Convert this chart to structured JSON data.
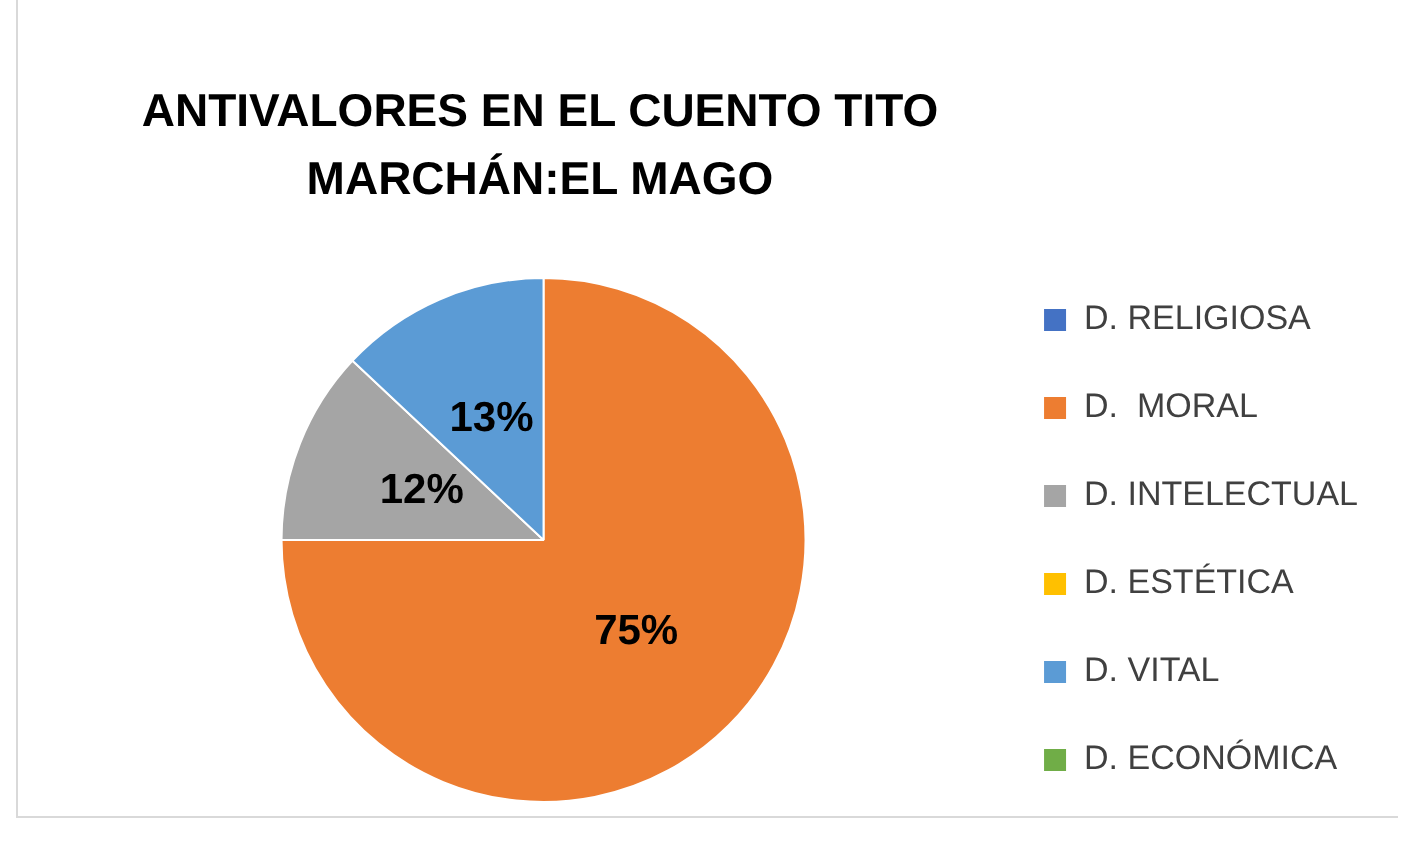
{
  "chart_data": {
    "type": "pie",
    "title": "ANTIVALORES EN EL CUENTO TITO MARCHÁN:EL MAGO",
    "categories": [
      "D. RELIGIOSA",
      "D.  MORAL",
      "D. INTELECTUAL",
      "D. ESTÉTICA",
      "D. VITAL",
      "D. ECONÓMICA"
    ],
    "values": [
      0,
      75,
      12,
      0,
      13,
      0
    ],
    "colors": [
      "#4472c4",
      "#ed7d31",
      "#a5a5a5",
      "#ffc000",
      "#5b9bd5",
      "#70ad47"
    ],
    "value_labels": [
      null,
      "75%",
      "12%",
      null,
      "13%",
      null
    ],
    "legend": "right"
  }
}
